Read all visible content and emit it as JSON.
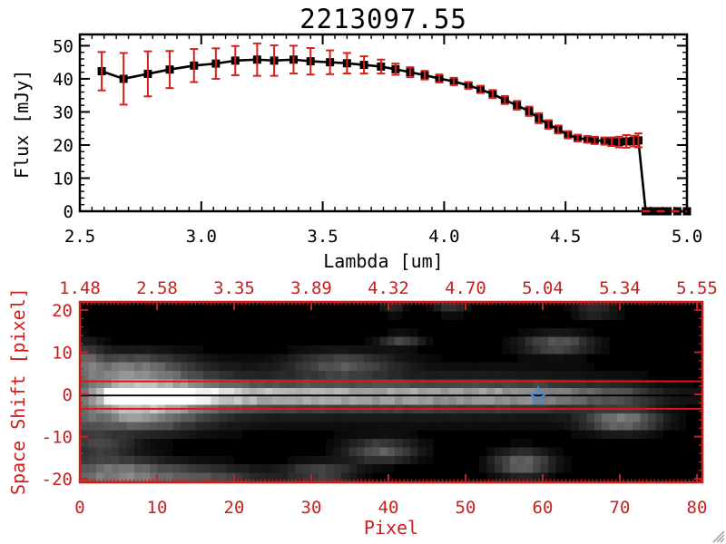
{
  "title": "2213097.55",
  "colors": {
    "frame_black": "#000000",
    "axis_red": "#c9201d",
    "error_red": "#d91f1a",
    "aperture_red": "#e51212",
    "marker_blue": "#4a8bd4",
    "grip_gray": "#a8a8a8",
    "background": "#ffffff"
  },
  "chart_data": [
    {
      "type": "line",
      "title": "2213097.55",
      "xlabel": "Lambda [um]",
      "ylabel": "Flux [mJy]",
      "xlim": [
        2.5,
        5.0
      ],
      "ylim": [
        0,
        53.4
      ],
      "x_ticks": [
        2.5,
        3.0,
        3.5,
        4.0,
        4.5,
        5.0
      ],
      "x_tick_labels": [
        "2.5",
        "3.0",
        "3.5",
        "4.0",
        "4.5",
        "5.0"
      ],
      "x_minor_step": 0.05,
      "y_ticks": [
        0,
        10,
        20,
        30,
        40,
        50
      ],
      "y_tick_labels": [
        "0",
        "10",
        "20",
        "30",
        "40",
        "50"
      ],
      "y_minor_step": 2,
      "marker": "filled-square",
      "line_color": "#000000",
      "error_color": "#d91f1a",
      "zero_tail_style": "red-dashed-at-zero",
      "x": [
        2.59,
        2.68,
        2.78,
        2.87,
        2.97,
        3.06,
        3.14,
        3.23,
        3.3,
        3.38,
        3.45,
        3.53,
        3.6,
        3.67,
        3.74,
        3.8,
        3.86,
        3.92,
        3.98,
        4.04,
        4.1,
        4.15,
        4.2,
        4.25,
        4.3,
        4.35,
        4.39,
        4.43,
        4.47,
        4.51,
        4.55,
        4.59,
        4.62,
        4.66,
        4.69,
        4.72,
        4.75,
        4.78,
        4.8,
        4.83,
        4.86,
        4.89,
        4.92,
        4.96,
        5.0
      ],
      "y": [
        42.3,
        40.0,
        41.5,
        42.8,
        44.0,
        44.6,
        45.5,
        45.8,
        45.5,
        45.8,
        45.3,
        45.0,
        44.7,
        44.2,
        43.7,
        42.9,
        42.0,
        41.1,
        40.1,
        39.2,
        38.0,
        36.8,
        35.4,
        33.6,
        32.0,
        30.2,
        28.1,
        26.2,
        24.7,
        23.1,
        22.1,
        21.7,
        21.4,
        21.2,
        21.0,
        20.9,
        21.1,
        21.2,
        21.4,
        0,
        0,
        0,
        0,
        0,
        0
      ],
      "yerr": [
        5.8,
        7.8,
        6.8,
        5.6,
        5.0,
        4.6,
        4.4,
        4.9,
        4.6,
        4.2,
        4.0,
        3.6,
        3.1,
        2.6,
        2.1,
        1.7,
        1.5,
        1.3,
        1.2,
        1.1,
        1.0,
        1.1,
        1.2,
        1.2,
        1.3,
        1.4,
        1.5,
        1.3,
        1.2,
        1.1,
        1.0,
        1.0,
        1.1,
        1.1,
        1.3,
        1.6,
        1.9,
        1.6,
        2.1,
        0,
        0,
        0,
        0,
        0,
        0
      ]
    },
    {
      "type": "heatmap",
      "xlabel": "Pixel",
      "ylabel": "Space Shift [pixel]",
      "xlim": [
        0,
        80.7
      ],
      "ylim": [
        -20.7,
        21.8
      ],
      "x_ticks": [
        0,
        10,
        20,
        30,
        40,
        50,
        60,
        70,
        80
      ],
      "x_tick_labels": [
        "0",
        "10",
        "20",
        "30",
        "40",
        "50",
        "60",
        "70",
        "80"
      ],
      "x_minor_step": 0.5,
      "y_ticks": [
        -20,
        -10,
        0,
        10,
        20
      ],
      "y_tick_labels": [
        "-20",
        "-10",
        "0",
        "10",
        "20"
      ],
      "y_minor_step": 2,
      "top_axis": {
        "tick_positions": [
          0,
          10,
          20,
          30,
          40,
          50,
          60,
          70,
          80
        ],
        "tick_labels": [
          "1.48",
          "2.58",
          "3.35",
          "3.89",
          "4.32",
          "4.70",
          "5.04",
          "5.34",
          "5.55"
        ]
      },
      "aperture_line_shifts": [
        3.1,
        -3.4
      ],
      "trace_center_line_shift": -0.25,
      "marker": {
        "shape": "star-outline",
        "pixel": 59.4,
        "shift": -0.45,
        "color": "#4a8bd4"
      },
      "trace": {
        "center_shift": -0.3,
        "sigma": 1.7,
        "wing_sigma": 4.4,
        "wing_frac": 0.22,
        "profile_x": [
          0,
          2,
          4,
          6,
          8,
          10,
          12,
          14,
          16,
          20,
          25,
          30,
          35,
          40,
          45,
          50,
          55,
          58,
          60,
          63,
          66,
          69,
          72,
          74,
          76,
          78,
          80
        ],
        "profile_i": [
          0.1,
          0.3,
          0.75,
          1.0,
          1.0,
          1.0,
          0.93,
          0.82,
          0.74,
          0.66,
          0.6,
          0.58,
          0.56,
          0.55,
          0.53,
          0.52,
          0.5,
          0.48,
          0.45,
          0.38,
          0.3,
          0.26,
          0.2,
          0.12,
          0.07,
          0.05,
          0.04
        ]
      },
      "blobs": [
        {
          "x": 8,
          "y": -0.3,
          "sx": 6.5,
          "sy": 4.0,
          "i": 0.28
        },
        {
          "x": 6,
          "y": 6.0,
          "sx": 5.0,
          "sy": 2.5,
          "i": 0.3
        },
        {
          "x": 7,
          "y": -5.5,
          "sx": 5.0,
          "sy": 2.2,
          "i": 0.3
        },
        {
          "x": 0.5,
          "y": 8.0,
          "sx": 1.5,
          "sy": 3.0,
          "i": 0.2
        },
        {
          "x": 0.5,
          "y": -3.0,
          "sx": 1.5,
          "sy": 6.0,
          "i": 0.16
        },
        {
          "x": 34,
          "y": 7.0,
          "sx": 4.5,
          "sy": 2.0,
          "i": 0.26
        },
        {
          "x": 41.5,
          "y": 12.8,
          "sx": 1.8,
          "sy": 1.0,
          "i": 0.22
        },
        {
          "x": 62,
          "y": 12.0,
          "sx": 3.0,
          "sy": 1.5,
          "i": 0.3
        },
        {
          "x": 39,
          "y": -13.5,
          "sx": 3.0,
          "sy": 1.8,
          "i": 0.3
        },
        {
          "x": 70.5,
          "y": -6.3,
          "sx": 3.2,
          "sy": 1.7,
          "i": 0.42
        },
        {
          "x": 3,
          "y": -12.0,
          "sx": 2.5,
          "sy": 1.8,
          "i": 0.2
        },
        {
          "x": 4,
          "y": -19.0,
          "sx": 5.0,
          "sy": 2.5,
          "i": 0.42
        },
        {
          "x": 15,
          "y": -20.0,
          "sx": 6.0,
          "sy": 2.0,
          "i": 0.25
        },
        {
          "x": 31,
          "y": -18.5,
          "sx": 3.0,
          "sy": 1.5,
          "i": 0.25
        },
        {
          "x": 57.5,
          "y": -16.5,
          "sx": 2.5,
          "sy": 2.0,
          "i": 0.35
        },
        {
          "x": 48,
          "y": 20.5,
          "sx": 1.5,
          "sy": 1.0,
          "i": 0.15
        },
        {
          "x": 40.5,
          "y": 20.5,
          "sx": 1.0,
          "sy": 1.0,
          "i": 0.13
        },
        {
          "x": 67,
          "y": 20.0,
          "sx": 2.0,
          "sy": 1.2,
          "i": 0.15
        }
      ]
    }
  ]
}
